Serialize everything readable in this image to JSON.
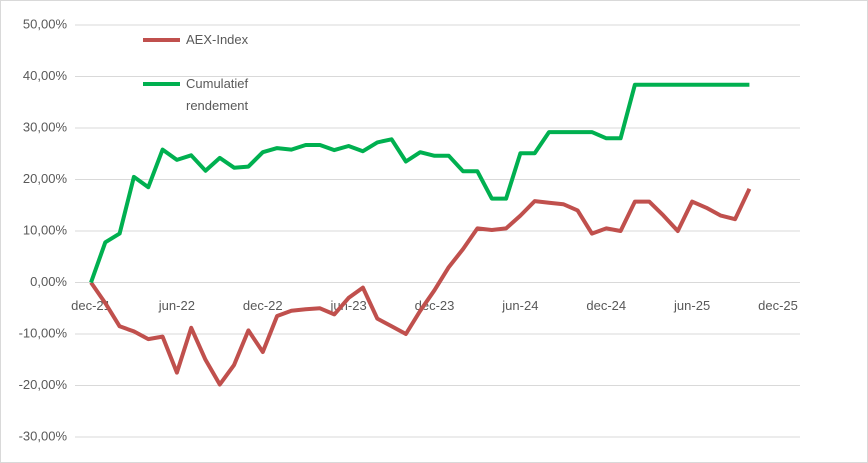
{
  "chart_data": {
    "type": "line",
    "categories": [
      "dec-21",
      null,
      null,
      null,
      null,
      null,
      "jun-22",
      null,
      null,
      null,
      null,
      null,
      "dec-22",
      null,
      null,
      null,
      null,
      null,
      "jun-23",
      null,
      null,
      null,
      null,
      null,
      "dec-23",
      null,
      null,
      null,
      null,
      null,
      "jun-24",
      null,
      null,
      null,
      null,
      null,
      "dec-24",
      null,
      null,
      null,
      null,
      null,
      "jun-25",
      null,
      null,
      null,
      null,
      null,
      "dec-25"
    ],
    "series": [
      {
        "name": "AEX-Index",
        "color": "#c0504d",
        "values": [
          0,
          -4,
          -8.5,
          -9.5,
          -11,
          -10.5,
          -17.5,
          -8.8,
          -15,
          -19.8,
          -16,
          -9.3,
          -13.5,
          -6.5,
          -5.5,
          -5.2,
          -5,
          -6.2,
          -3,
          -1,
          -7,
          -8.5,
          -10,
          -5.5,
          -1.5,
          3,
          6.5,
          10.5,
          10.2,
          10.5,
          13,
          15.8,
          15.5,
          15.2,
          14,
          9.5,
          10.5,
          10,
          15.7,
          15.7,
          13,
          10,
          15.7,
          14.5,
          13,
          12.3,
          18.2,
          null,
          null
        ]
      },
      {
        "name": "Cumulatief rendement",
        "color": "#00b050",
        "values": [
          0,
          7.8,
          9.5,
          20.5,
          18.5,
          25.8,
          23.8,
          24.7,
          21.7,
          24.2,
          22.3,
          22.5,
          25.3,
          26.1,
          25.8,
          26.7,
          26.7,
          25.7,
          26.5,
          25.5,
          27.2,
          27.8,
          23.5,
          25.3,
          24.6,
          24.6,
          21.6,
          21.6,
          16.3,
          16.3,
          25.1,
          25.1,
          29.2,
          29.2,
          29.2,
          29.2,
          28,
          28,
          38.4,
          38.4,
          38.4,
          38.4,
          38.4,
          38.4,
          38.4,
          38.4,
          38.4,
          null,
          null
        ]
      }
    ],
    "ylim": [
      -30,
      50
    ],
    "yticks": [
      {
        "value": -30,
        "label": "-30,00%"
      },
      {
        "value": -20,
        "label": "-20,00%"
      },
      {
        "value": -10,
        "label": "-10,00%"
      },
      {
        "value": 0,
        "label": "0,00%"
      },
      {
        "value": 10,
        "label": "10,00%"
      },
      {
        "value": 20,
        "label": "20,00%"
      },
      {
        "value": 30,
        "label": "30,00%"
      },
      {
        "value": 40,
        "label": "40,00%"
      },
      {
        "value": 50,
        "label": "50,00%"
      }
    ],
    "grid": true,
    "legend": "top-left"
  }
}
